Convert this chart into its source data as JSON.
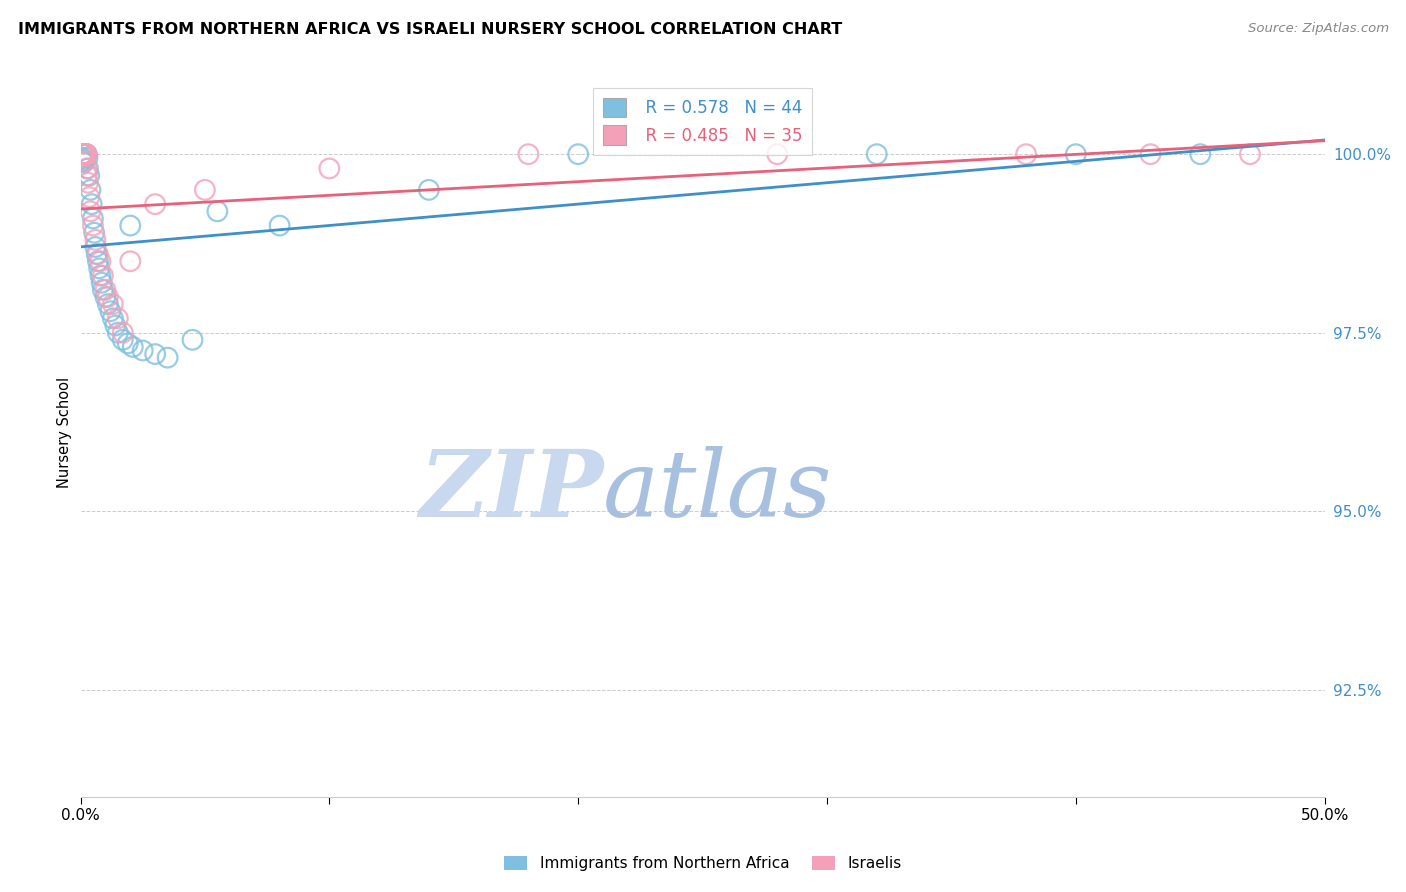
{
  "title": "IMMIGRANTS FROM NORTHERN AFRICA VS ISRAELI NURSERY SCHOOL CORRELATION CHART",
  "source": "Source: ZipAtlas.com",
  "ylabel": "Nursery School",
  "y_ticks": [
    92.5,
    95.0,
    97.5,
    100.0
  ],
  "y_tick_labels": [
    "92.5%",
    "95.0%",
    "97.5%",
    "100.0%"
  ],
  "xlim": [
    0.0,
    50.0
  ],
  "ylim": [
    91.0,
    101.2
  ],
  "legend_blue_label": "Immigrants from Northern Africa",
  "legend_pink_label": "Israelis",
  "r_blue": "R = 0.578",
  "n_blue": "N = 44",
  "r_pink": "R = 0.485",
  "n_pink": "N = 35",
  "blue_color": "#7fbfdf",
  "pink_color": "#f4a0b8",
  "blue_line_color": "#4090c8",
  "pink_line_color": "#e8607a",
  "blue_scatter": [
    [
      0.05,
      99.95
    ],
    [
      0.08,
      99.92
    ],
    [
      0.1,
      99.9
    ],
    [
      0.12,
      99.88
    ],
    [
      0.15,
      100.0
    ],
    [
      0.18,
      100.0
    ],
    [
      0.2,
      100.0
    ],
    [
      0.22,
      100.0
    ],
    [
      0.25,
      100.0
    ],
    [
      0.28,
      99.95
    ],
    [
      0.3,
      99.8
    ],
    [
      0.35,
      99.7
    ],
    [
      0.4,
      99.5
    ],
    [
      0.45,
      99.3
    ],
    [
      0.5,
      99.1
    ],
    [
      0.55,
      98.9
    ],
    [
      0.6,
      98.7
    ],
    [
      0.65,
      98.6
    ],
    [
      0.7,
      98.5
    ],
    [
      0.75,
      98.4
    ],
    [
      0.8,
      98.3
    ],
    [
      0.85,
      98.2
    ],
    [
      0.9,
      98.1
    ],
    [
      1.0,
      98.0
    ],
    [
      1.1,
      97.9
    ],
    [
      1.2,
      97.8
    ],
    [
      1.3,
      97.7
    ],
    [
      1.4,
      97.6
    ],
    [
      1.5,
      97.5
    ],
    [
      1.7,
      97.4
    ],
    [
      1.9,
      97.35
    ],
    [
      2.1,
      97.3
    ],
    [
      2.5,
      97.25
    ],
    [
      3.0,
      97.2
    ],
    [
      3.5,
      97.15
    ],
    [
      4.5,
      97.4
    ],
    [
      2.0,
      99.0
    ],
    [
      5.5,
      99.2
    ],
    [
      8.0,
      99.0
    ],
    [
      14.0,
      99.5
    ],
    [
      20.0,
      100.0
    ],
    [
      32.0,
      100.0
    ],
    [
      40.0,
      100.0
    ],
    [
      45.0,
      100.0
    ]
  ],
  "pink_scatter": [
    [
      0.05,
      100.0
    ],
    [
      0.08,
      100.0
    ],
    [
      0.1,
      100.0
    ],
    [
      0.12,
      100.0
    ],
    [
      0.14,
      100.0
    ],
    [
      0.16,
      100.0
    ],
    [
      0.18,
      100.0
    ],
    [
      0.2,
      100.0
    ],
    [
      0.22,
      100.0
    ],
    [
      0.24,
      100.0
    ],
    [
      0.26,
      99.8
    ],
    [
      0.3,
      99.6
    ],
    [
      0.35,
      99.4
    ],
    [
      0.4,
      99.2
    ],
    [
      0.5,
      99.0
    ],
    [
      0.6,
      98.8
    ],
    [
      0.7,
      98.6
    ],
    [
      0.8,
      98.5
    ],
    [
      0.9,
      98.3
    ],
    [
      1.0,
      98.1
    ],
    [
      1.1,
      98.0
    ],
    [
      1.3,
      97.9
    ],
    [
      1.5,
      97.7
    ],
    [
      1.7,
      97.5
    ],
    [
      0.15,
      99.9
    ],
    [
      0.25,
      99.7
    ],
    [
      2.0,
      98.5
    ],
    [
      3.0,
      99.3
    ],
    [
      5.0,
      99.5
    ],
    [
      10.0,
      99.8
    ],
    [
      18.0,
      100.0
    ],
    [
      28.0,
      100.0
    ],
    [
      38.0,
      100.0
    ],
    [
      43.0,
      100.0
    ],
    [
      47.0,
      100.0
    ]
  ],
  "background_color": "#ffffff",
  "grid_color": "#cccccc",
  "watermark_zip_color": "#c8d8ee",
  "watermark_atlas_color": "#a8c8e8"
}
